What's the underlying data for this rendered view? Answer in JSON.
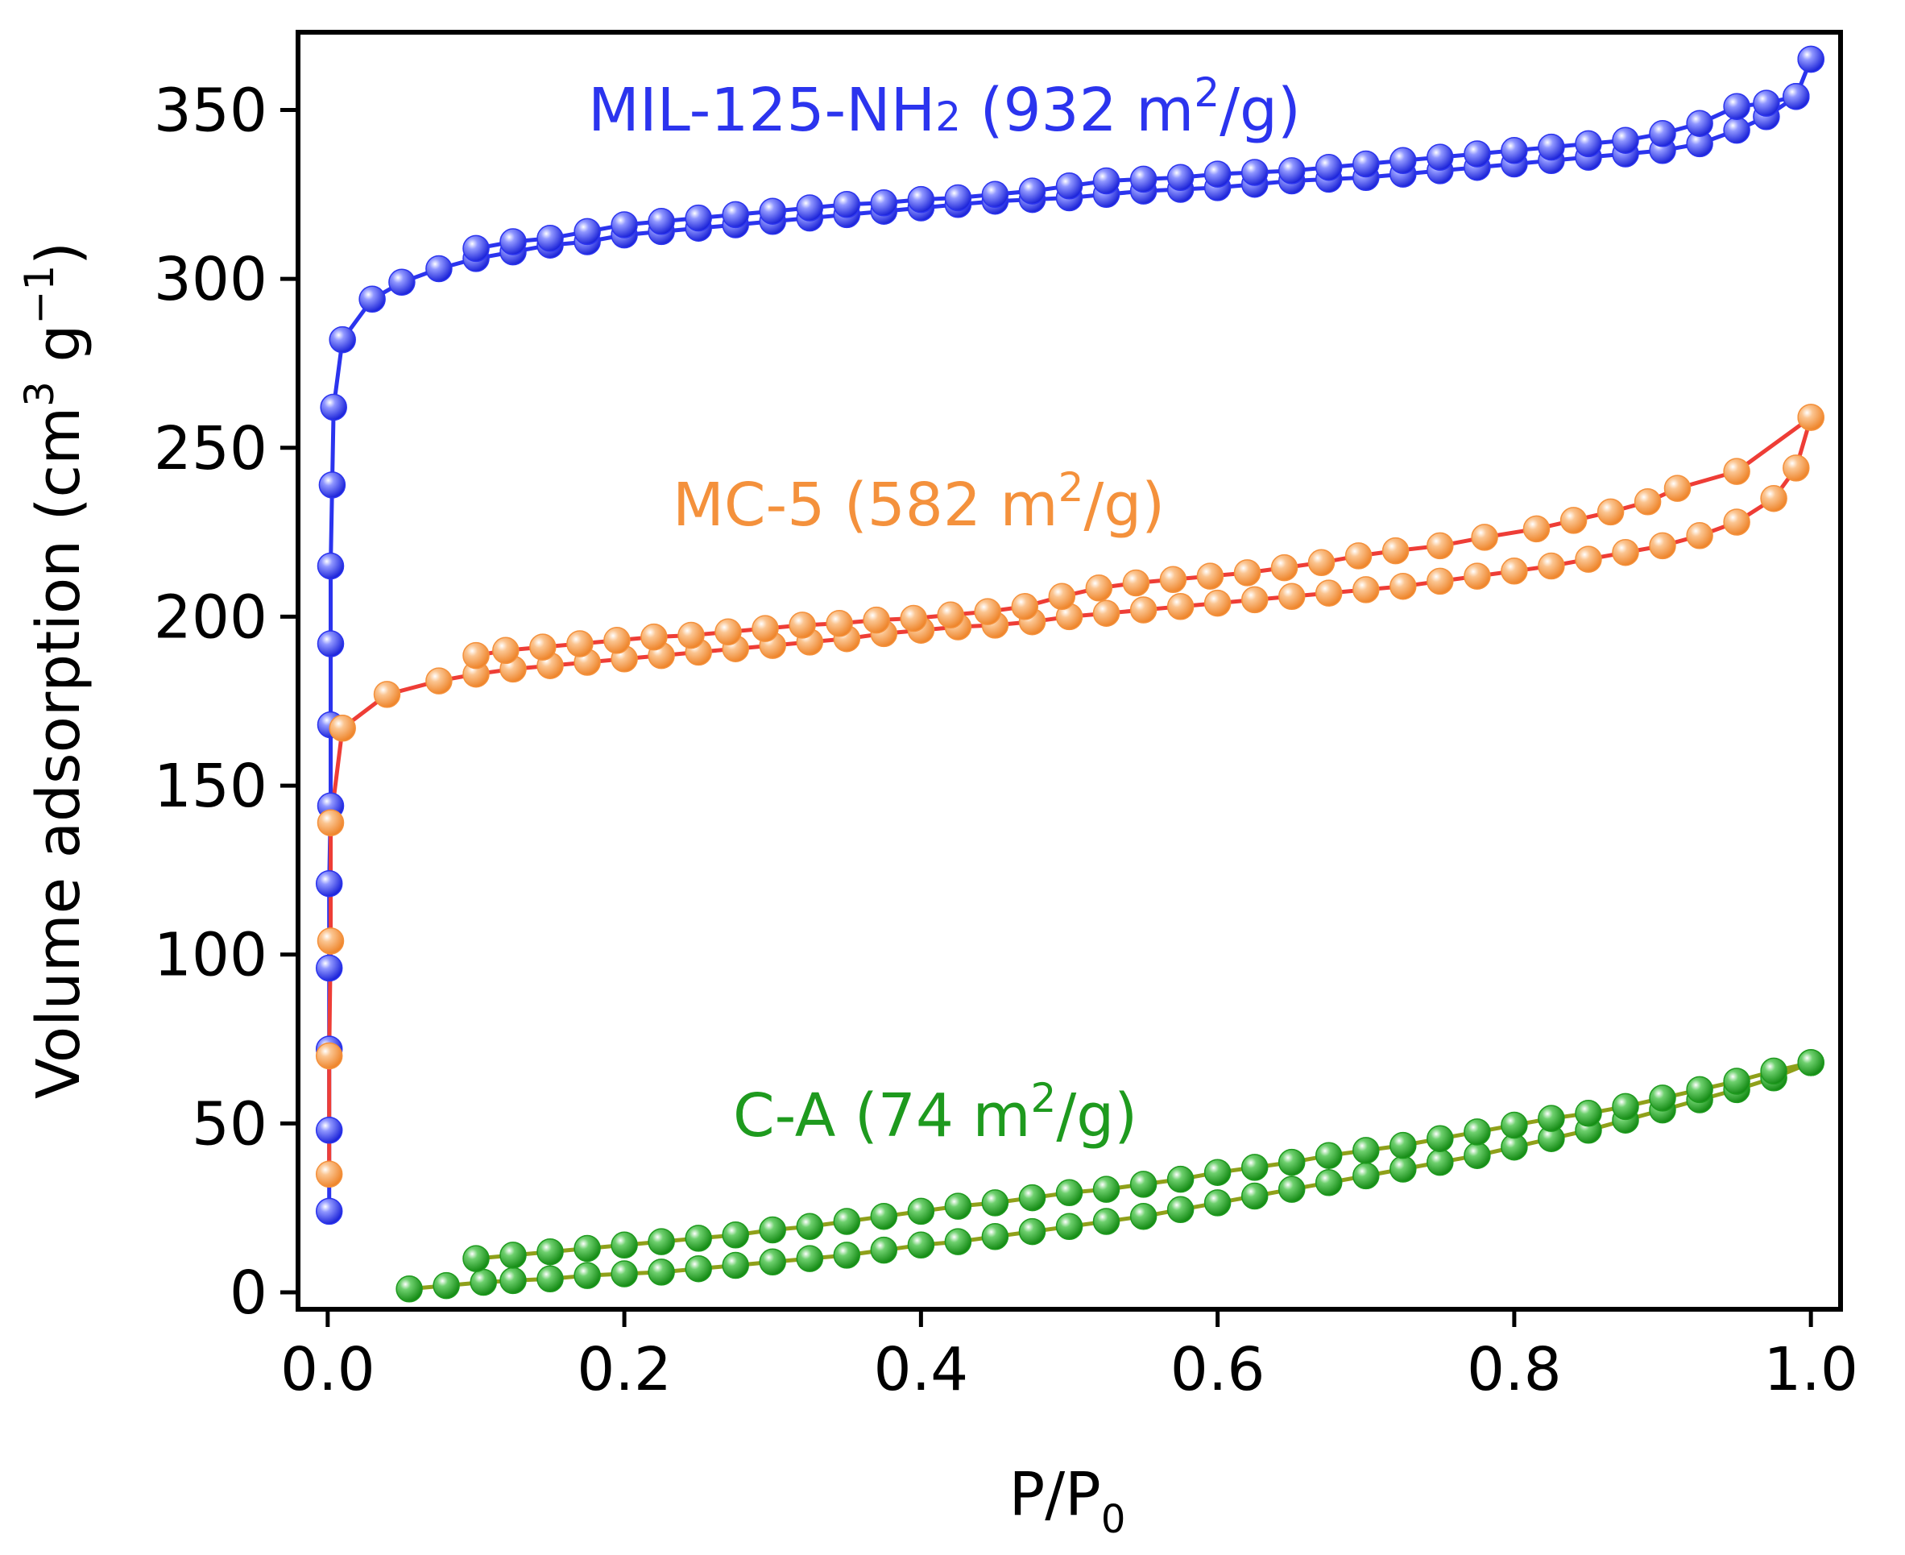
{
  "chart_data": {
    "type": "scatter",
    "title": "",
    "xlabel": {
      "main": "P/P",
      "sub": "0"
    },
    "ylabel": {
      "main": "Volume adsorption (cm",
      "sup1": "3",
      "mid": " g",
      "sup2": "−1",
      "end": ")"
    },
    "xlim": [
      -0.02,
      1.02
    ],
    "ylim": [
      -5,
      373
    ],
    "xticks": [
      0.0,
      0.2,
      0.4,
      0.6,
      0.8,
      1.0
    ],
    "xtick_labels": [
      "0.0",
      "0.2",
      "0.4",
      "0.6",
      "0.8",
      "1.0"
    ],
    "yticks": [
      0,
      50,
      100,
      150,
      200,
      250,
      300,
      350
    ],
    "ytick_labels": [
      "0",
      "50",
      "100",
      "150",
      "200",
      "250",
      "300",
      "350"
    ],
    "grid": false,
    "legend": "none",
    "series": [
      {
        "name": "MIL-125-NH2",
        "label_main": "MIL-125-NH",
        "label_sub": "2",
        "label_pre": " (932 m",
        "label_sup": "2",
        "label_post": "/g)",
        "color": "#2b34ee",
        "line_color": "#2b34ee",
        "adsorption": [
          [
            0.001,
            24
          ],
          [
            0.001,
            48
          ],
          [
            0.001,
            72
          ],
          [
            0.001,
            96
          ],
          [
            0.001,
            121
          ],
          [
            0.002,
            144
          ],
          [
            0.002,
            168
          ],
          [
            0.002,
            192
          ],
          [
            0.002,
            215
          ],
          [
            0.003,
            239
          ],
          [
            0.004,
            262
          ],
          [
            0.01,
            282
          ],
          [
            0.03,
            294
          ],
          [
            0.05,
            299
          ],
          [
            0.075,
            303
          ],
          [
            0.1,
            306
          ],
          [
            0.125,
            308
          ],
          [
            0.15,
            310
          ],
          [
            0.175,
            311
          ],
          [
            0.2,
            313
          ],
          [
            0.225,
            314
          ],
          [
            0.25,
            315
          ],
          [
            0.275,
            316
          ],
          [
            0.3,
            317
          ],
          [
            0.325,
            318
          ],
          [
            0.35,
            319
          ],
          [
            0.375,
            320
          ],
          [
            0.4,
            321
          ],
          [
            0.425,
            322
          ],
          [
            0.45,
            323
          ],
          [
            0.475,
            323.5
          ],
          [
            0.5,
            324
          ],
          [
            0.525,
            325
          ],
          [
            0.55,
            326
          ],
          [
            0.575,
            326.5
          ],
          [
            0.6,
            327
          ],
          [
            0.625,
            328
          ],
          [
            0.65,
            329
          ],
          [
            0.675,
            329.5
          ],
          [
            0.7,
            330
          ],
          [
            0.725,
            331
          ],
          [
            0.75,
            332
          ],
          [
            0.775,
            333
          ],
          [
            0.8,
            334
          ],
          [
            0.825,
            335
          ],
          [
            0.85,
            336
          ],
          [
            0.875,
            337
          ],
          [
            0.9,
            338
          ],
          [
            0.925,
            340
          ],
          [
            0.95,
            344
          ],
          [
            0.97,
            348
          ],
          [
            0.99,
            354
          ],
          [
            1.0,
            365
          ]
        ],
        "desorption": [
          [
            1.0,
            365
          ],
          [
            0.99,
            354
          ],
          [
            0.97,
            352
          ],
          [
            0.95,
            351
          ],
          [
            0.925,
            346
          ],
          [
            0.9,
            343
          ],
          [
            0.875,
            341
          ],
          [
            0.85,
            340
          ],
          [
            0.825,
            339
          ],
          [
            0.8,
            338
          ],
          [
            0.775,
            337
          ],
          [
            0.75,
            336
          ],
          [
            0.725,
            335
          ],
          [
            0.7,
            334
          ],
          [
            0.675,
            333
          ],
          [
            0.65,
            332
          ],
          [
            0.625,
            331.5
          ],
          [
            0.6,
            331
          ],
          [
            0.575,
            330
          ],
          [
            0.55,
            329.5
          ],
          [
            0.525,
            329
          ],
          [
            0.5,
            327.5
          ],
          [
            0.475,
            326
          ],
          [
            0.45,
            325
          ],
          [
            0.425,
            324
          ],
          [
            0.4,
            323.5
          ],
          [
            0.375,
            322.5
          ],
          [
            0.35,
            322
          ],
          [
            0.325,
            321
          ],
          [
            0.3,
            320
          ],
          [
            0.275,
            319
          ],
          [
            0.25,
            318
          ],
          [
            0.225,
            317
          ],
          [
            0.2,
            316
          ],
          [
            0.175,
            314
          ],
          [
            0.15,
            312
          ],
          [
            0.125,
            311
          ],
          [
            0.1,
            309
          ]
        ]
      },
      {
        "name": "MC-5",
        "label_main": "MC-5",
        "label_sub": "",
        "label_pre": " (582 m",
        "label_sup": "2",
        "label_post": "/g)",
        "color": "#f4913c",
        "line_color": "#ee3d36",
        "adsorption": [
          [
            0.001,
            35
          ],
          [
            0.001,
            70
          ],
          [
            0.002,
            104
          ],
          [
            0.002,
            139
          ],
          [
            0.01,
            167
          ],
          [
            0.04,
            177
          ],
          [
            0.075,
            181
          ],
          [
            0.1,
            183
          ],
          [
            0.125,
            184.5
          ],
          [
            0.15,
            185.5
          ],
          [
            0.175,
            186.5
          ],
          [
            0.2,
            187.5
          ],
          [
            0.225,
            188.5
          ],
          [
            0.25,
            189.5
          ],
          [
            0.275,
            190.5
          ],
          [
            0.3,
            191.5
          ],
          [
            0.325,
            192.5
          ],
          [
            0.35,
            193.5
          ],
          [
            0.375,
            195
          ],
          [
            0.4,
            196
          ],
          [
            0.425,
            197
          ],
          [
            0.45,
            197.5
          ],
          [
            0.475,
            198.5
          ],
          [
            0.5,
            200
          ],
          [
            0.525,
            201
          ],
          [
            0.55,
            202
          ],
          [
            0.575,
            203
          ],
          [
            0.6,
            204
          ],
          [
            0.625,
            205
          ],
          [
            0.65,
            206
          ],
          [
            0.675,
            207
          ],
          [
            0.7,
            208
          ],
          [
            0.725,
            209
          ],
          [
            0.75,
            210.5
          ],
          [
            0.775,
            212
          ],
          [
            0.8,
            213.5
          ],
          [
            0.825,
            215
          ],
          [
            0.85,
            217
          ],
          [
            0.875,
            219
          ],
          [
            0.9,
            221
          ],
          [
            0.925,
            224
          ],
          [
            0.95,
            228
          ],
          [
            0.975,
            235
          ],
          [
            0.99,
            244
          ],
          [
            1.0,
            259
          ]
        ],
        "desorption": [
          [
            1.0,
            259
          ],
          [
            0.95,
            243
          ],
          [
            0.91,
            238
          ],
          [
            0.89,
            234
          ],
          [
            0.865,
            231
          ],
          [
            0.84,
            228.5
          ],
          [
            0.815,
            226
          ],
          [
            0.78,
            223.5
          ],
          [
            0.75,
            221
          ],
          [
            0.72,
            219.5
          ],
          [
            0.695,
            218
          ],
          [
            0.67,
            216
          ],
          [
            0.645,
            214.5
          ],
          [
            0.62,
            213
          ],
          [
            0.595,
            212
          ],
          [
            0.57,
            211
          ],
          [
            0.545,
            210
          ],
          [
            0.52,
            208.5
          ],
          [
            0.495,
            206
          ],
          [
            0.47,
            203
          ],
          [
            0.445,
            201.5
          ],
          [
            0.42,
            200.5
          ],
          [
            0.395,
            199.5
          ],
          [
            0.37,
            199
          ],
          [
            0.345,
            198
          ],
          [
            0.32,
            197.5
          ],
          [
            0.295,
            196.5
          ],
          [
            0.27,
            195.5
          ],
          [
            0.245,
            194.5
          ],
          [
            0.22,
            194
          ],
          [
            0.195,
            193
          ],
          [
            0.17,
            192
          ],
          [
            0.145,
            191
          ],
          [
            0.12,
            190
          ],
          [
            0.1,
            188.5
          ]
        ]
      },
      {
        "name": "C-A",
        "label_main": "C-A",
        "label_sub": "",
        "label_pre": " (74 m",
        "label_sup": "2",
        "label_post": "/g)",
        "color": "#1e9a1e",
        "line_color": "#8fa01a",
        "adsorption": [
          [
            0.055,
            1
          ],
          [
            0.08,
            2
          ],
          [
            0.105,
            3
          ],
          [
            0.125,
            3.5
          ],
          [
            0.15,
            4
          ],
          [
            0.175,
            5
          ],
          [
            0.2,
            5.5
          ],
          [
            0.225,
            6
          ],
          [
            0.25,
            7
          ],
          [
            0.275,
            8
          ],
          [
            0.3,
            9
          ],
          [
            0.325,
            10
          ],
          [
            0.35,
            11
          ],
          [
            0.375,
            12.5
          ],
          [
            0.4,
            14
          ],
          [
            0.425,
            15
          ],
          [
            0.45,
            16.5
          ],
          [
            0.475,
            18
          ],
          [
            0.5,
            19.5
          ],
          [
            0.525,
            21
          ],
          [
            0.55,
            22.5
          ],
          [
            0.575,
            24.5
          ],
          [
            0.6,
            26.5
          ],
          [
            0.625,
            28.5
          ],
          [
            0.65,
            30.5
          ],
          [
            0.675,
            32.5
          ],
          [
            0.7,
            34.5
          ],
          [
            0.725,
            36.5
          ],
          [
            0.75,
            38.5
          ],
          [
            0.775,
            40.5
          ],
          [
            0.8,
            43
          ],
          [
            0.825,
            45.5
          ],
          [
            0.85,
            48
          ],
          [
            0.875,
            51
          ],
          [
            0.9,
            54
          ],
          [
            0.925,
            57
          ],
          [
            0.95,
            60
          ],
          [
            0.975,
            63.5
          ],
          [
            1.0,
            68
          ]
        ],
        "desorption": [
          [
            1.0,
            68
          ],
          [
            0.975,
            65.5
          ],
          [
            0.95,
            62.5
          ],
          [
            0.925,
            60
          ],
          [
            0.9,
            57.5
          ],
          [
            0.875,
            55
          ],
          [
            0.85,
            53
          ],
          [
            0.825,
            51.5
          ],
          [
            0.8,
            49.5
          ],
          [
            0.775,
            47.5
          ],
          [
            0.75,
            45.5
          ],
          [
            0.725,
            43.5
          ],
          [
            0.7,
            42
          ],
          [
            0.675,
            40.5
          ],
          [
            0.65,
            38.5
          ],
          [
            0.625,
            37
          ],
          [
            0.6,
            35.5
          ],
          [
            0.575,
            33.5
          ],
          [
            0.55,
            32
          ],
          [
            0.525,
            30.5
          ],
          [
            0.5,
            29.5
          ],
          [
            0.475,
            28
          ],
          [
            0.45,
            26.5
          ],
          [
            0.425,
            25.5
          ],
          [
            0.4,
            24
          ],
          [
            0.375,
            22.5
          ],
          [
            0.35,
            21
          ],
          [
            0.325,
            19.5
          ],
          [
            0.3,
            18.5
          ],
          [
            0.275,
            17
          ],
          [
            0.25,
            16
          ],
          [
            0.225,
            15
          ],
          [
            0.2,
            14
          ],
          [
            0.175,
            13
          ],
          [
            0.15,
            12
          ],
          [
            0.125,
            11
          ],
          [
            0.1,
            10
          ]
        ]
      }
    ]
  }
}
